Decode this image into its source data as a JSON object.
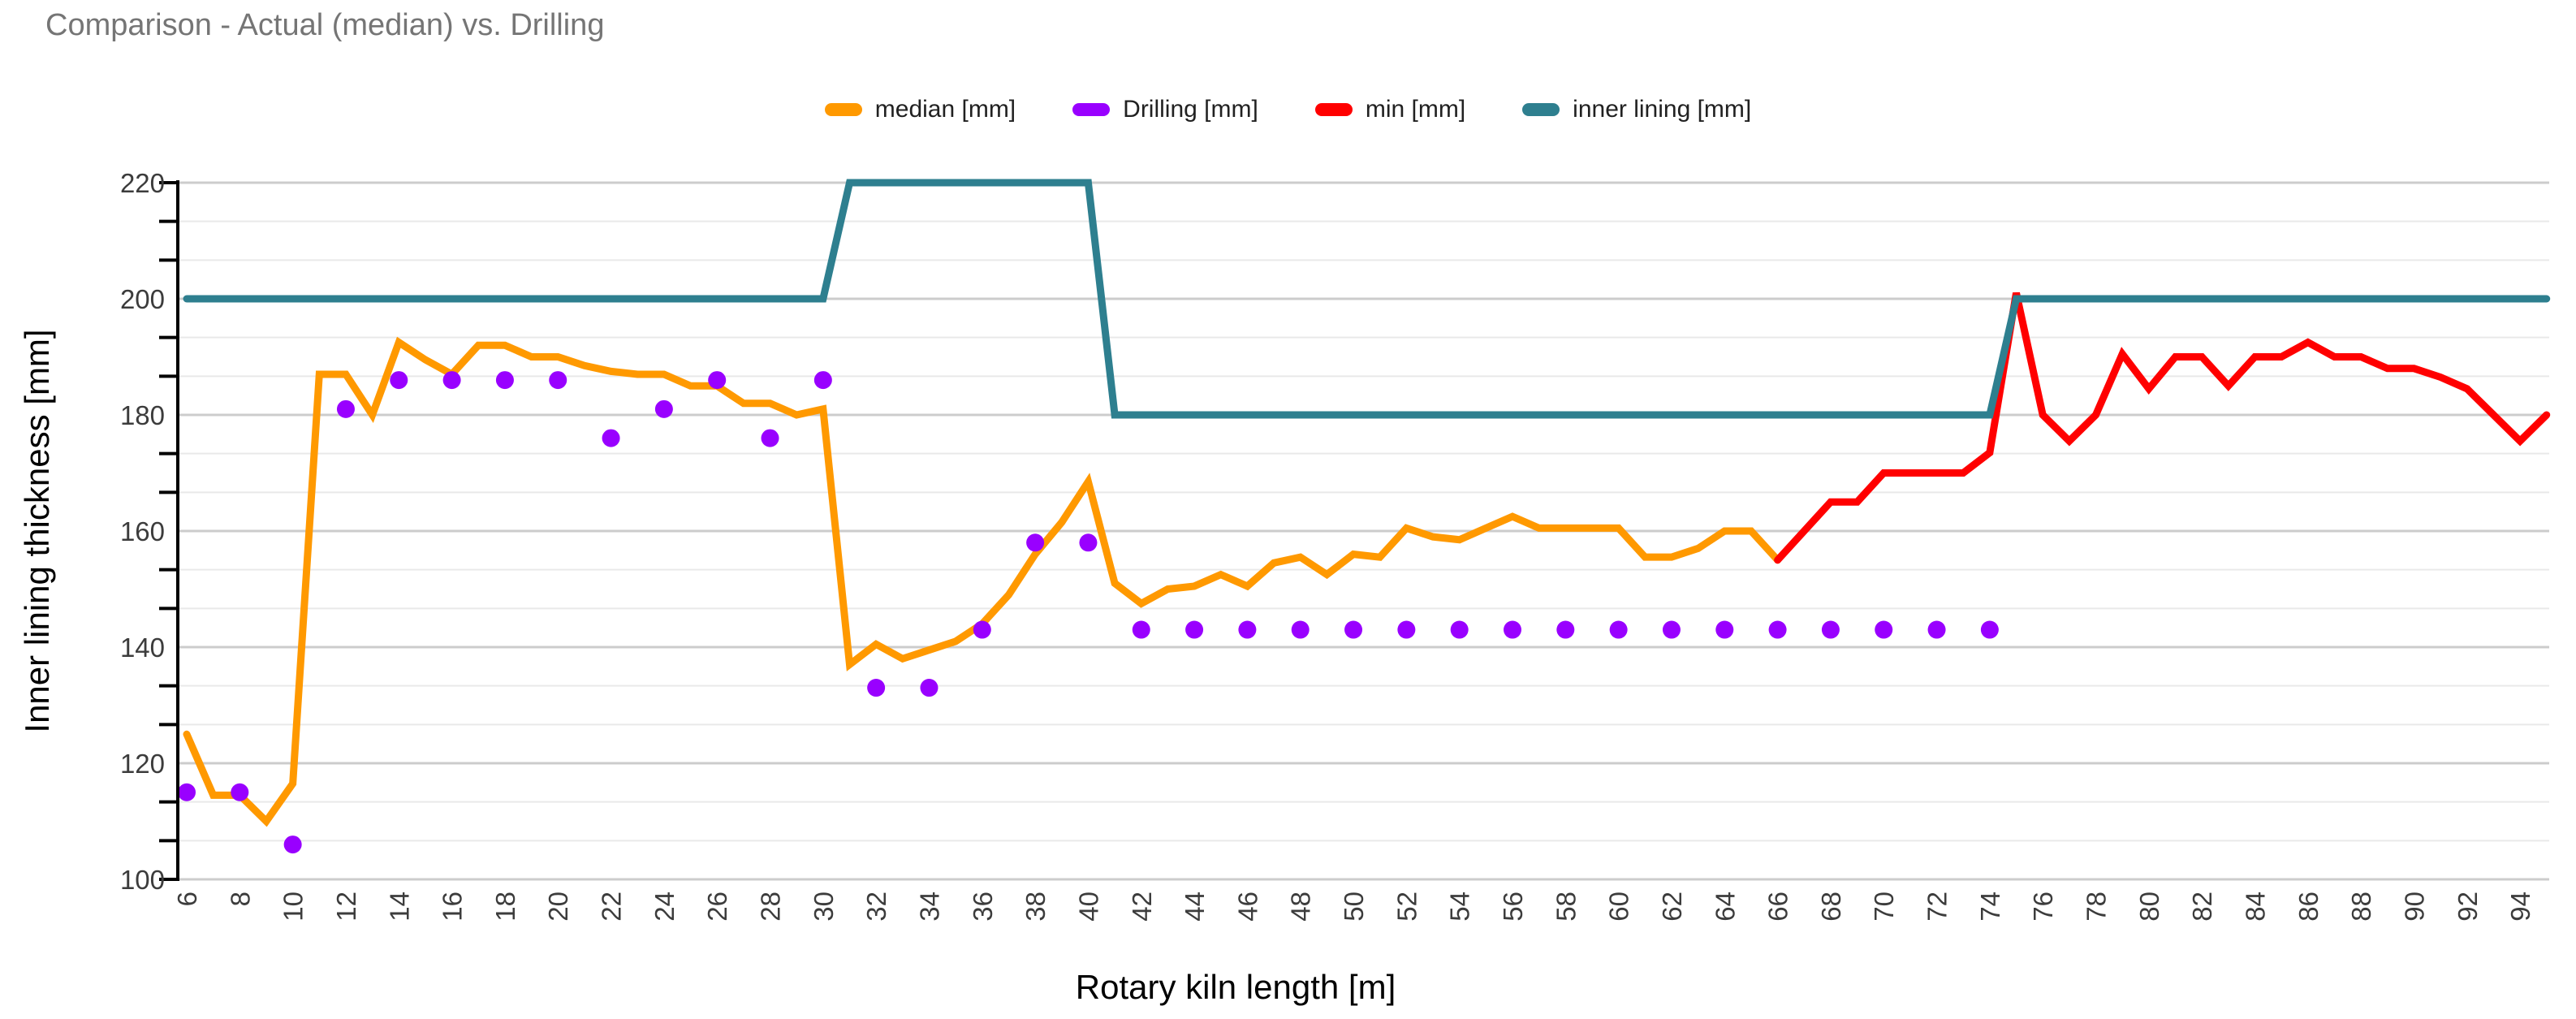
{
  "title": "Comparison - Actual (median) vs. Drilling",
  "legend": [
    {
      "label": "median [mm]",
      "series": "median"
    },
    {
      "label": "Drilling [mm]",
      "series": "drilling"
    },
    {
      "label": "min [mm]",
      "series": "min"
    },
    {
      "label": "inner lining [mm]",
      "series": "inner_lining"
    }
  ],
  "colors": {
    "median": "#ff9900",
    "drilling": "#9900ff",
    "min": "#ff0000",
    "inner_lining": "#2e7f8f",
    "title_text": "#757575",
    "legend_text": "#212121",
    "tick_text": "#3c3c3c",
    "axis_title_text": "#000000",
    "grid_major": "#cccccc",
    "grid_minor": "#e9e9e9",
    "axis_line": "#000000"
  },
  "chart_data": {
    "type": "line",
    "title": "Comparison - Actual (median) vs. Drilling",
    "xlabel": "Rotary kiln length [m]",
    "ylabel": "Inner lining thickness [mm]",
    "xlim": [
      6,
      95
    ],
    "ylim": [
      100,
      220
    ],
    "x_ticks": [
      6,
      8,
      10,
      12,
      14,
      16,
      18,
      20,
      22,
      24,
      26,
      28,
      30,
      32,
      34,
      36,
      38,
      40,
      42,
      44,
      46,
      48,
      50,
      52,
      54,
      56,
      58,
      60,
      62,
      64,
      66,
      68,
      70,
      72,
      74,
      76,
      78,
      80,
      82,
      84,
      86,
      88,
      90,
      92,
      94
    ],
    "y_ticks": [
      100,
      120,
      140,
      160,
      180,
      200,
      220
    ],
    "y_minor_step": 6.6667,
    "grid": true,
    "legend_position": "top",
    "series": [
      {
        "name": "median [mm]",
        "key": "median",
        "type": "line",
        "points": [
          [
            6,
            125
          ],
          [
            7,
            114.5
          ],
          [
            8,
            114.5
          ],
          [
            9,
            110
          ],
          [
            10,
            116.5
          ],
          [
            11,
            187
          ],
          [
            12,
            187
          ],
          [
            13,
            180
          ],
          [
            14,
            192.5
          ],
          [
            15,
            189.5
          ],
          [
            16,
            187
          ],
          [
            17,
            192
          ],
          [
            18,
            192
          ],
          [
            19,
            190
          ],
          [
            20,
            190
          ],
          [
            21,
            188.5
          ],
          [
            22,
            187.5
          ],
          [
            23,
            187
          ],
          [
            24,
            187
          ],
          [
            25,
            185
          ],
          [
            26,
            185
          ],
          [
            27,
            182
          ],
          [
            28,
            182
          ],
          [
            29,
            180
          ],
          [
            30,
            181
          ],
          [
            31,
            137
          ],
          [
            32,
            140.5
          ],
          [
            33,
            138
          ],
          [
            34,
            139.5
          ],
          [
            35,
            141
          ],
          [
            36,
            144
          ],
          [
            37,
            149
          ],
          [
            38,
            156
          ],
          [
            39,
            161.5
          ],
          [
            40,
            168.5
          ],
          [
            41,
            151
          ],
          [
            42,
            147.5
          ],
          [
            43,
            150
          ],
          [
            44,
            150.5
          ],
          [
            45,
            152.5
          ],
          [
            46,
            150.5
          ],
          [
            47,
            154.5
          ],
          [
            48,
            155.5
          ],
          [
            49,
            152.5
          ],
          [
            50,
            156
          ],
          [
            51,
            155.5
          ],
          [
            52,
            160.5
          ],
          [
            53,
            159
          ],
          [
            54,
            158.5
          ],
          [
            55,
            160.5
          ],
          [
            56,
            162.5
          ],
          [
            57,
            160.5
          ],
          [
            58,
            160.5
          ],
          [
            59,
            160.5
          ],
          [
            60,
            160.5
          ],
          [
            61,
            155.5
          ],
          [
            62,
            155.5
          ],
          [
            63,
            157
          ],
          [
            64,
            160
          ],
          [
            65,
            160
          ],
          [
            66,
            155
          ]
        ]
      },
      {
        "name": "Drilling [mm]",
        "key": "drilling",
        "type": "scatter",
        "points": [
          [
            6,
            115
          ],
          [
            8,
            115
          ],
          [
            10,
            106
          ],
          [
            12,
            181
          ],
          [
            14,
            186
          ],
          [
            16,
            186
          ],
          [
            18,
            186
          ],
          [
            20,
            186
          ],
          [
            22,
            176
          ],
          [
            24,
            181
          ],
          [
            26,
            186
          ],
          [
            28,
            176
          ],
          [
            30,
            186
          ],
          [
            32,
            133
          ],
          [
            34,
            133
          ],
          [
            36,
            143
          ],
          [
            38,
            158
          ],
          [
            40,
            158
          ],
          [
            42,
            143
          ],
          [
            44,
            143
          ],
          [
            46,
            143
          ],
          [
            48,
            143
          ],
          [
            50,
            143
          ],
          [
            52,
            143
          ],
          [
            54,
            143
          ],
          [
            56,
            143
          ],
          [
            58,
            143
          ],
          [
            60,
            143
          ],
          [
            62,
            143
          ],
          [
            64,
            143
          ],
          [
            66,
            143
          ],
          [
            68,
            143
          ],
          [
            70,
            143
          ],
          [
            72,
            143
          ],
          [
            74,
            143
          ]
        ]
      },
      {
        "name": "min [mm]",
        "key": "min",
        "type": "line",
        "points": [
          [
            66,
            155
          ],
          [
            67,
            160
          ],
          [
            68,
            165
          ],
          [
            69,
            165
          ],
          [
            70,
            170
          ],
          [
            71,
            170
          ],
          [
            72,
            170
          ],
          [
            73,
            170
          ],
          [
            74,
            173.5
          ],
          [
            75,
            201
          ],
          [
            76,
            180
          ],
          [
            77,
            175.5
          ],
          [
            78,
            180
          ],
          [
            79,
            190.5
          ],
          [
            80,
            184.5
          ],
          [
            81,
            190
          ],
          [
            82,
            190
          ],
          [
            83,
            185
          ],
          [
            84,
            190
          ],
          [
            85,
            190
          ],
          [
            86,
            192.5
          ],
          [
            87,
            190
          ],
          [
            88,
            190
          ],
          [
            89,
            188
          ],
          [
            90,
            188
          ],
          [
            91,
            186.5
          ],
          [
            92,
            184.5
          ],
          [
            93,
            180
          ],
          [
            94,
            175.5
          ],
          [
            95,
            180
          ]
        ]
      },
      {
        "name": "inner lining [mm]",
        "key": "inner_lining",
        "type": "line",
        "points": [
          [
            6,
            200
          ],
          [
            30,
            200
          ],
          [
            31,
            220
          ],
          [
            40,
            220
          ],
          [
            41,
            180
          ],
          [
            74,
            180
          ],
          [
            75,
            200
          ],
          [
            95,
            200
          ]
        ]
      }
    ]
  }
}
